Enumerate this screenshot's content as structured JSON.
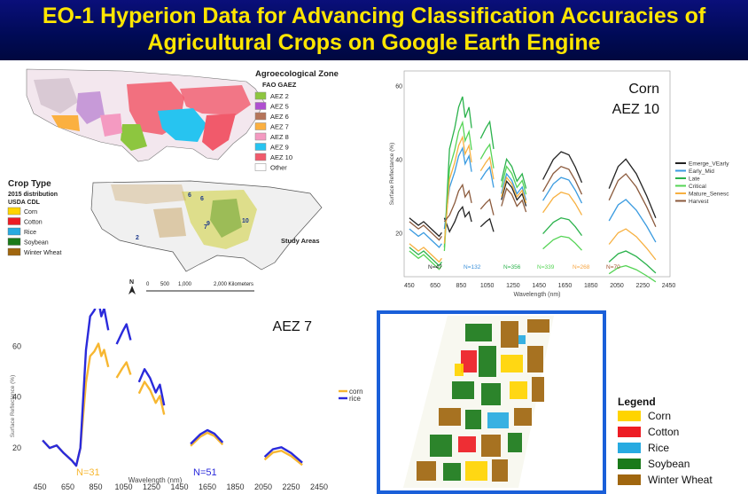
{
  "title": {
    "line1": "EO-1 Hyperion Data for Advancing Classification Accuracies of",
    "line2": "Agricultural Crops on Google Earth Engine"
  },
  "aez_map": {
    "legend_title": "Agroecological Zone",
    "legend_subtitle": "FAO GAEZ",
    "items": [
      {
        "label": "AEZ 2",
        "color": "#8dc63f"
      },
      {
        "label": "AEZ 5",
        "color": "#b04fd1"
      },
      {
        "label": "AEZ 6",
        "color": "#b5745a"
      },
      {
        "label": "AEZ 7",
        "color": "#fbb040"
      },
      {
        "label": "AEZ 8",
        "color": "#f49ac1"
      },
      {
        "label": "AEZ 9",
        "color": "#27c4f0"
      },
      {
        "label": "AEZ 10",
        "color": "#f15a6b"
      },
      {
        "label": "Other",
        "color": "#ffffff"
      }
    ]
  },
  "crop_map": {
    "legend_title": "Crop Type",
    "legend_sub1": "2015 distribution",
    "legend_sub2": "USDA CDL",
    "items": [
      {
        "label": "Corn",
        "color": "#ffd400"
      },
      {
        "label": "Cotton",
        "color": "#ed1c24"
      },
      {
        "label": "Rice",
        "color": "#27aae1"
      },
      {
        "label": "Soybean",
        "color": "#1a7a1a"
      },
      {
        "label": "Winter Wheat",
        "color": "#a0660f"
      }
    ],
    "study_areas_label": "Study Areas",
    "site_numbers": [
      "6",
      "6",
      "7",
      "9",
      "10",
      "2"
    ],
    "scale_ticks": [
      "0",
      "500",
      "1,000",
      "2,000 Kilometers"
    ],
    "north_label": "N"
  },
  "corn_chart": {
    "title_line1": "Corn",
    "title_line2": "AEZ 10",
    "ylabel": "Surface Reflectance (%)",
    "xlabel": "Wavelength (nm)",
    "x_ticks": [
      "450",
      "650",
      "850",
      "1050",
      "1250",
      "1450",
      "1650",
      "1850",
      "2050",
      "2250",
      "2450"
    ],
    "y_ticks": [
      "20",
      "40",
      "60"
    ],
    "n_labels": [
      {
        "text": "N=47",
        "color": "#222222"
      },
      {
        "text": "N=132",
        "color": "#3a8fd9"
      },
      {
        "text": "N=356",
        "color": "#2bb24c"
      },
      {
        "text": "N=339",
        "color": "#55d455"
      },
      {
        "text": "N=268",
        "color": "#f7a541"
      },
      {
        "text": "N=70",
        "color": "#a0522d"
      }
    ],
    "legend": [
      {
        "label": "Emerge_VEarly",
        "color": "#222222"
      },
      {
        "label": "Early_Mid",
        "color": "#3a9be0"
      },
      {
        "label": "Late",
        "color": "#2bb24c"
      },
      {
        "label": "Critical",
        "color": "#55d455"
      },
      {
        "label": "Mature_Senesc",
        "color": "#f7b040"
      },
      {
        "label": "Harvest",
        "color": "#8b5a3c"
      }
    ]
  },
  "aez7_chart": {
    "title": "AEZ 7",
    "ylabel": "Surface Reflectance (%)",
    "xlabel": "Wavelength (nm)",
    "x_ticks": [
      "450",
      "650",
      "850",
      "1050",
      "1250",
      "1450",
      "1650",
      "1850",
      "2050",
      "2250",
      "2450"
    ],
    "y_ticks": [
      "20",
      "40",
      "60"
    ],
    "legend": [
      {
        "label": "corn",
        "color": "#f7b731"
      },
      {
        "label": "rice",
        "color": "#2a2adb"
      }
    ],
    "n_labels": [
      {
        "text": "N=31",
        "color": "#f7b731"
      },
      {
        "text": "N=51",
        "color": "#2a2adb"
      }
    ]
  },
  "classified_map": {
    "frame_color": "#1a5fd9",
    "legend_title": "Legend",
    "items": [
      {
        "label": "Corn",
        "color": "#ffd400"
      },
      {
        "label": "Cotton",
        "color": "#ed1c24"
      },
      {
        "label": "Rice",
        "color": "#27aae1"
      },
      {
        "label": "Soybean",
        "color": "#1a7a1a"
      },
      {
        "label": "Winter Wheat",
        "color": "#a0660f"
      }
    ]
  }
}
